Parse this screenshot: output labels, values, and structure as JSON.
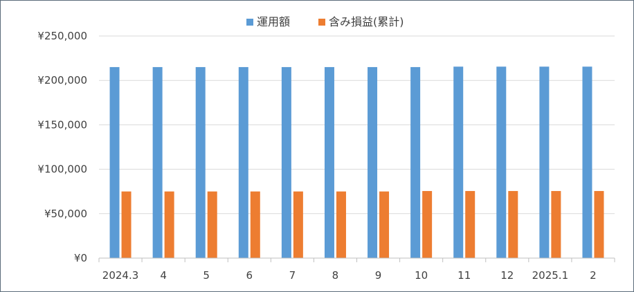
{
  "chart_data": {
    "type": "bar",
    "title": "",
    "xlabel": "",
    "ylabel": "",
    "categories": [
      "2024.3",
      "4",
      "5",
      "6",
      "7",
      "8",
      "9",
      "10",
      "11",
      "12",
      "2025.1",
      "2"
    ],
    "series": [
      {
        "name": "運用額",
        "color": "#5b9bd5",
        "values": [
          215000,
          215000,
          215000,
          215000,
          215000,
          215000,
          215000,
          215000,
          215500,
          215500,
          215500,
          215500
        ]
      },
      {
        "name": "含み損益(累計)",
        "color": "#ed7d31",
        "values": [
          75000,
          75000,
          75000,
          75000,
          75000,
          75000,
          75000,
          75500,
          75500,
          75500,
          75500,
          75500
        ]
      }
    ],
    "ylim": [
      0,
      250000
    ],
    "yticks": [
      "¥0",
      "¥50,000",
      "¥100,000",
      "¥150,000",
      "¥200,000",
      "¥250,000"
    ],
    "ytick_values": [
      0,
      50000,
      100000,
      150000,
      200000,
      250000
    ],
    "grid": true,
    "legend_position": "top"
  }
}
